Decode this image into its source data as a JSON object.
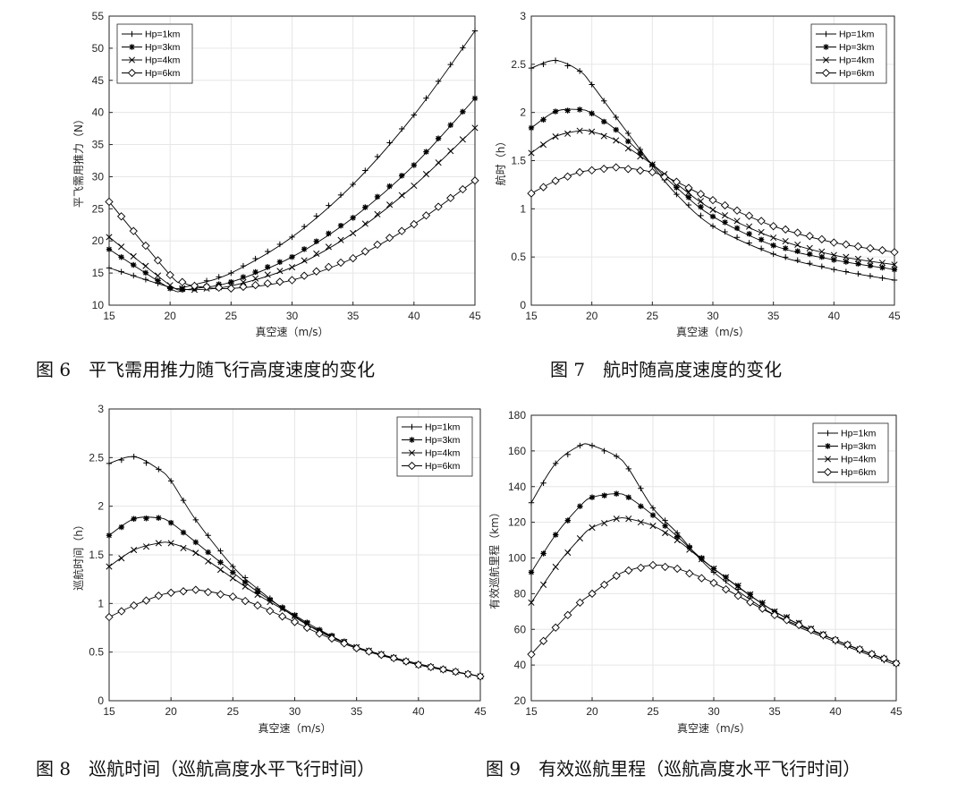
{
  "chart_data": [
    {
      "type": "line",
      "caption": "图 6　平飞需用推力随飞行高度速度的变化",
      "xlabel": "真空速（m/s）",
      "ylabel": "平飞需用推力（N）",
      "xlim": [
        15,
        45
      ],
      "ylim": [
        10,
        55
      ],
      "xticks": [
        "15",
        "20",
        "25",
        "30",
        "35",
        "40",
        "45"
      ],
      "yticks": [
        "10",
        "15",
        "20",
        "25",
        "30",
        "35",
        "40",
        "45",
        "50",
        "55"
      ],
      "grid": true,
      "legend_position": "top-left",
      "x": [
        15,
        20,
        21,
        22,
        25,
        30,
        35,
        40,
        45
      ],
      "series": [
        {
          "name": "Hp=1km",
          "marker": "plus",
          "values": [
            15.8,
            12.8,
            12.8,
            13.2,
            15.0,
            20.6,
            28.8,
            39.6,
            52.7
          ]
        },
        {
          "name": "Hp=3km",
          "marker": "star",
          "values": [
            18.7,
            12.6,
            12.4,
            12.6,
            13.6,
            17.5,
            23.6,
            31.8,
            42.2
          ]
        },
        {
          "name": "Hp=4km",
          "marker": "cross",
          "values": [
            20.6,
            13.1,
            12.6,
            12.4,
            13.0,
            15.9,
            21.2,
            28.6,
            37.6
          ]
        },
        {
          "name": "Hp=6km",
          "marker": "diamond",
          "values": [
            26.1,
            14.7,
            13.6,
            13.0,
            12.6,
            13.9,
            17.3,
            22.6,
            29.4
          ]
        }
      ]
    },
    {
      "type": "line",
      "caption": "图 7　航时随高度速度的变化",
      "xlabel": "真空速（m/s）",
      "ylabel": "航时（h）",
      "xlim": [
        15,
        45
      ],
      "ylim": [
        0,
        3
      ],
      "xticks": [
        "15",
        "20",
        "25",
        "30",
        "35",
        "40",
        "45"
      ],
      "yticks": [
        "0",
        "0.5",
        "1",
        "1.5",
        "2",
        "2.5",
        "3"
      ],
      "grid": true,
      "legend_position": "top-right",
      "x": [
        15,
        17,
        19,
        20,
        22,
        25,
        27,
        30,
        35,
        40,
        45
      ],
      "series": [
        {
          "name": "Hp=1km",
          "marker": "plus",
          "values": [
            2.46,
            2.54,
            2.43,
            2.29,
            1.95,
            1.45,
            1.15,
            0.82,
            0.53,
            0.37,
            0.26
          ]
        },
        {
          "name": "Hp=3km",
          "marker": "star",
          "values": [
            1.84,
            2.01,
            2.03,
            1.99,
            1.82,
            1.46,
            1.22,
            0.92,
            0.62,
            0.47,
            0.37
          ]
        },
        {
          "name": "Hp=4km",
          "marker": "cross",
          "values": [
            1.58,
            1.75,
            1.81,
            1.8,
            1.71,
            1.46,
            1.26,
            0.99,
            0.7,
            0.52,
            0.42
          ]
        },
        {
          "name": "Hp=6km",
          "marker": "diamond",
          "values": [
            1.16,
            1.29,
            1.38,
            1.4,
            1.43,
            1.38,
            1.28,
            1.09,
            0.82,
            0.65,
            0.55
          ]
        }
      ]
    },
    {
      "type": "line",
      "caption": "图 8　巡航时间（巡航高度水平飞行时间）",
      "xlabel": "真空速（m/s）",
      "ylabel": "巡航时间（h）",
      "xlim": [
        15,
        45
      ],
      "ylim": [
        0,
        3
      ],
      "xticks": [
        "15",
        "20",
        "25",
        "30",
        "35",
        "40",
        "45"
      ],
      "yticks": [
        "0",
        "0.5",
        "1",
        "1.5",
        "2",
        "2.5",
        "3"
      ],
      "grid": true,
      "legend_position": "top-right",
      "x": [
        15,
        17,
        19,
        20,
        22,
        25,
        27,
        30,
        32,
        35,
        40,
        45
      ],
      "series": [
        {
          "name": "Hp=1km",
          "marker": "plus",
          "values": [
            2.44,
            2.51,
            2.38,
            2.26,
            1.86,
            1.38,
            1.15,
            0.86,
            0.72,
            0.55,
            0.38,
            0.25
          ]
        },
        {
          "name": "Hp=3km",
          "marker": "star",
          "values": [
            1.7,
            1.87,
            1.88,
            1.83,
            1.63,
            1.32,
            1.12,
            0.88,
            0.73,
            0.55,
            0.37,
            0.25
          ]
        },
        {
          "name": "Hp=4km",
          "marker": "cross",
          "values": [
            1.38,
            1.55,
            1.62,
            1.62,
            1.52,
            1.26,
            1.09,
            0.87,
            0.71,
            0.55,
            0.37,
            0.25
          ]
        },
        {
          "name": "Hp=6km",
          "marker": "diamond",
          "values": [
            0.86,
            0.98,
            1.08,
            1.11,
            1.14,
            1.07,
            0.98,
            0.81,
            0.69,
            0.54,
            0.37,
            0.25
          ]
        }
      ]
    },
    {
      "type": "line",
      "caption": "图 9　有效巡航里程（巡航高度水平飞行时间）",
      "xlabel": "真空速（m/s）",
      "ylabel": "有效巡航里程（km）",
      "xlim": [
        15,
        45
      ],
      "ylim": [
        20,
        180
      ],
      "xticks": [
        "15",
        "20",
        "25",
        "30",
        "35",
        "40",
        "45"
      ],
      "yticks": [
        "20",
        "40",
        "60",
        "80",
        "100",
        "120",
        "140",
        "160",
        "180"
      ],
      "grid": true,
      "legend_position": "top-right",
      "x": [
        15,
        17,
        19,
        20,
        22,
        23,
        25,
        27,
        30,
        35,
        40,
        45
      ],
      "series": [
        {
          "name": "Hp=1km",
          "marker": "plus",
          "values": [
            131,
            153,
            163,
            163,
            157,
            150,
            128,
            114,
            92,
            68,
            53,
            40
          ]
        },
        {
          "name": "Hp=3km",
          "marker": "star",
          "values": [
            92,
            113,
            129,
            134,
            136,
            134,
            124,
            112,
            94,
            70,
            54,
            41
          ]
        },
        {
          "name": "Hp=4km",
          "marker": "cross",
          "values": [
            75,
            95,
            111,
            117,
            122,
            122,
            118,
            110,
            94,
            70,
            54,
            41
          ]
        },
        {
          "name": "Hp=6km",
          "marker": "diamond",
          "values": [
            46,
            61,
            75,
            80,
            90,
            93,
            96,
            94,
            86,
            68,
            54,
            41
          ]
        }
      ]
    }
  ]
}
